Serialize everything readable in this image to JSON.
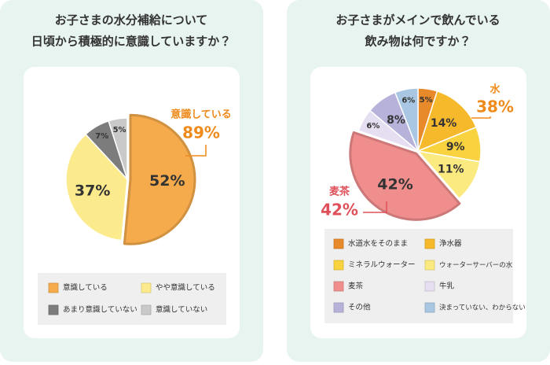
{
  "chart_data": [
    {
      "type": "pie",
      "title": [
        "お子さまの水分補給について",
        "日頃から積極的に意識していますか？"
      ],
      "categories": [
        "意識している",
        "やや意識している",
        "あまり意識していない",
        "意識していない"
      ],
      "values": [
        52,
        37,
        7,
        5
      ],
      "value_labels": [
        "52%",
        "37%",
        "7%",
        "5%"
      ],
      "colors": [
        "#f5aa4c",
        "#fbeb8c",
        "#7c7c7c",
        "#c9c9c9"
      ],
      "explode": 0,
      "callouts": [
        {
          "label": "意識している",
          "value": "89%",
          "color": "#ef8a1c"
        }
      ]
    },
    {
      "type": "pie",
      "title": [
        "お子さまがメインで飲んでいる",
        "飲み物は何ですか？"
      ],
      "categories": [
        "水道水をそのまま",
        "浄水器",
        "ミネラルウォーター",
        "ウォーターサーバーの水",
        "麦茶",
        "牛乳",
        "その他",
        "決まっていない、わからない"
      ],
      "values": [
        5,
        14,
        9,
        11,
        42,
        6,
        8,
        6
      ],
      "value_labels": [
        "5%",
        "14%",
        "9%",
        "11%",
        "42%",
        "6%",
        "8%",
        "6%"
      ],
      "colors": [
        "#e8892a",
        "#f6b92c",
        "#f9d23f",
        "#fbea80",
        "#f08d8d",
        "#e6def1",
        "#b6b2da",
        "#a9c7e2"
      ],
      "explode": 4,
      "callouts": [
        {
          "label": "水",
          "value": "38%",
          "color": "#ef8a1c"
        },
        {
          "label": "麦茶",
          "value": "42%",
          "color": "#e0505a"
        }
      ]
    }
  ]
}
